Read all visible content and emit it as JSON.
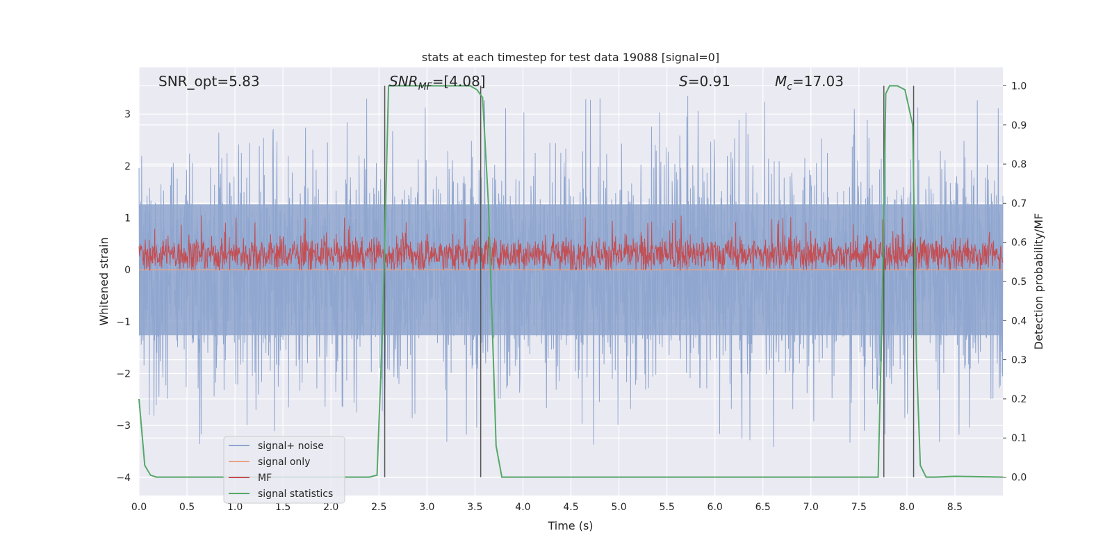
{
  "chart_data": {
    "type": "line",
    "title": "stats at each timestep for test data 19088 [signal=0]",
    "xlabel": "Time (s)",
    "ylabel": "Whitened strain",
    "ylabel_right": "Detection probability/MF",
    "xlim": [
      0.0,
      9.0
    ],
    "ylim": [
      -4.35,
      3.9
    ],
    "ylim_right": [
      -0.047,
      1.047
    ],
    "grid": true,
    "background": "#eaeaf2",
    "x_ticks": [
      "0.0",
      "0.5",
      "1.0",
      "1.5",
      "2.0",
      "2.5",
      "3.0",
      "3.5",
      "4.0",
      "4.5",
      "5.0",
      "5.5",
      "6.0",
      "6.5",
      "7.0",
      "7.5",
      "8.0",
      "8.5"
    ],
    "y_ticks": [
      "3",
      "2",
      "1",
      "0",
      "−1",
      "−2",
      "−3",
      "−4"
    ],
    "y_ticks_right": [
      "1.0",
      "0.9",
      "0.8",
      "0.7",
      "0.6",
      "0.5",
      "0.4",
      "0.3",
      "0.2",
      "0.1",
      "0.0"
    ],
    "annotations": {
      "snr_opt": "SNR_opt=5.83",
      "snr_mf_prefix": "SNR",
      "snr_mf_sub": "MF",
      "snr_mf_value": "=[4.08]",
      "s_letter": "S",
      "s_value": "=0.91",
      "mc_letter": "M",
      "mc_sub": "c",
      "mc_value": "=17.03"
    },
    "legend": {
      "placement": "lower-left",
      "entries": [
        "signal+ noise",
        "signal only",
        "MF",
        "signal statistics"
      ]
    },
    "colors": {
      "noise": "#8fa6cf",
      "signal_only": "#e9a386",
      "mf": "#c44e52",
      "stat": "#55a868",
      "vline": "#555555"
    },
    "series": [
      {
        "name": "signal+ noise",
        "envelope_typical": [
          -1.8,
          1.8
        ],
        "spike_range": [
          -3.75,
          3.35
        ]
      },
      {
        "name": "signal only",
        "x": [
          0.0,
          9.0
        ],
        "y": [
          0.0,
          0.0
        ]
      },
      {
        "name": "MF",
        "center": 0.3,
        "band": [
          0.05,
          0.65
        ],
        "spike_max": 1.05
      },
      {
        "name": "signal statistics",
        "x": [
          0.0,
          0.06,
          0.12,
          0.18,
          0.3,
          2.4,
          2.48,
          2.54,
          2.6,
          2.64,
          2.7,
          3.45,
          3.52,
          3.58,
          3.64,
          3.72,
          3.78,
          7.7,
          7.74,
          7.78,
          7.82,
          7.9,
          7.98,
          8.06,
          8.1,
          8.14,
          8.2,
          8.3,
          8.5,
          9.0
        ],
        "y": [
          0.2,
          0.03,
          0.005,
          0.0,
          0.0,
          0.0,
          0.005,
          0.4,
          1.0,
          1.0,
          1.0,
          1.0,
          0.99,
          0.97,
          0.7,
          0.08,
          0.0,
          0.0,
          0.4,
          0.98,
          1.0,
          1.0,
          0.99,
          0.9,
          0.3,
          0.03,
          0.0,
          0.0,
          0.002,
          0.0
        ]
      }
    ],
    "vlines": [
      {
        "x": 2.56,
        "y_top": 1.0
      },
      {
        "x": 3.56,
        "y_top": 1.0
      },
      {
        "x": 7.76,
        "y_top": 1.0
      },
      {
        "x": 8.07,
        "y_top": 1.0
      }
    ]
  }
}
